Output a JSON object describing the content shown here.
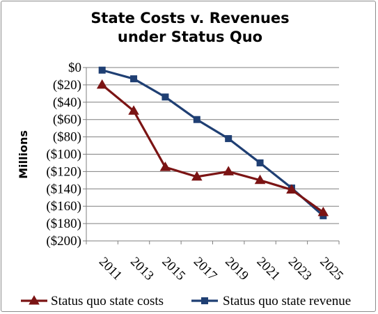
{
  "chart_data": {
    "type": "line",
    "title_lines": [
      "State Costs v. Revenues",
      "under Status Quo"
    ],
    "ylabel": "Millions",
    "xlabel": "",
    "x": [
      "2011",
      "2013",
      "2015",
      "2017",
      "2019",
      "2021",
      "2023",
      "2025"
    ],
    "ylim": [
      -200,
      0
    ],
    "y_ticks": [
      {
        "value": 0,
        "label": "$0"
      },
      {
        "value": -20,
        "label": "($20)"
      },
      {
        "value": -40,
        "label": "($40)"
      },
      {
        "value": -60,
        "label": "($60)"
      },
      {
        "value": -80,
        "label": "($80)"
      },
      {
        "value": -100,
        "label": "($100)"
      },
      {
        "value": -120,
        "label": "($120)"
      },
      {
        "value": -140,
        "label": "($140)"
      },
      {
        "value": -160,
        "label": "($160)"
      },
      {
        "value": -180,
        "label": "($180)"
      },
      {
        "value": -200,
        "label": "($200)"
      }
    ],
    "grid": "horizontal",
    "legend_position": "bottom",
    "series": [
      {
        "name": "Status quo state costs",
        "color": "#7b1414",
        "marker": "triangle",
        "values": [
          -20,
          -50,
          -115,
          -126,
          -120,
          -130,
          -141,
          -167
        ]
      },
      {
        "name": "Status quo state revenue",
        "color": "#1f3f73",
        "marker": "square",
        "values": [
          -3,
          -13,
          -34,
          -60,
          -82,
          -110,
          -139,
          -171
        ]
      }
    ]
  }
}
